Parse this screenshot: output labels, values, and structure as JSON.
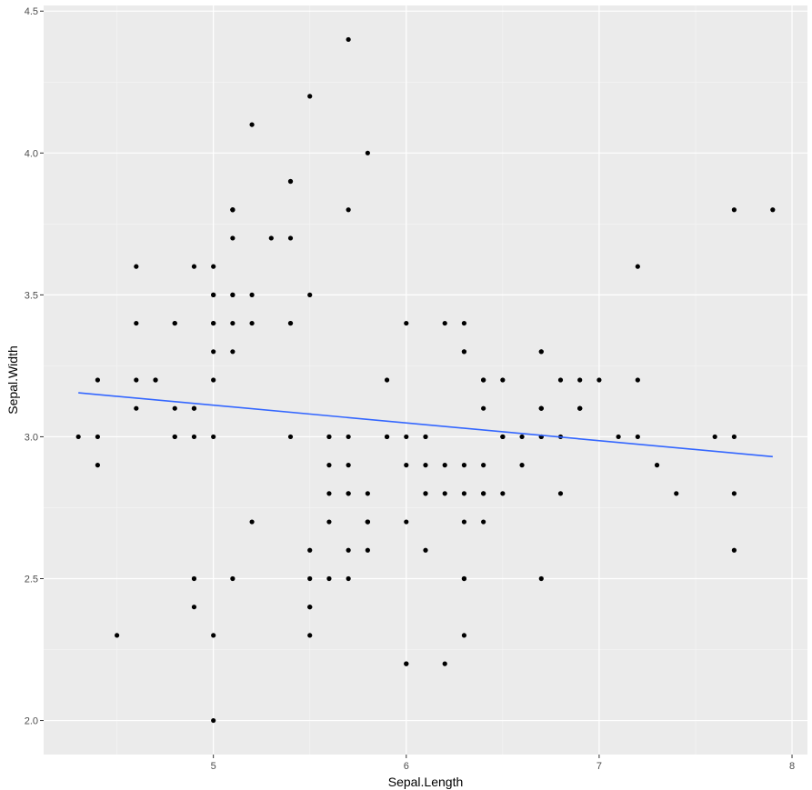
{
  "chart_data": {
    "type": "scatter",
    "title": "",
    "xlabel": "Sepal.Length",
    "ylabel": "Sepal.Width",
    "xlim": [
      4.12,
      8.08
    ],
    "ylim": [
      1.88,
      4.52
    ],
    "x_ticks": [
      5,
      6,
      7,
      8
    ],
    "y_ticks": [
      2.0,
      2.5,
      3.0,
      3.5,
      4.0,
      4.5
    ],
    "x_tick_labels": [
      "5",
      "6",
      "7",
      "8"
    ],
    "y_tick_labels": [
      "2.0",
      "2.5",
      "3.0",
      "3.5",
      "4.0",
      "4.5"
    ],
    "grid": true,
    "legend": "none",
    "colors": {
      "panel": "#ebebeb",
      "grid_major": "#ffffff",
      "grid_minor": "#f5f5f5",
      "points": "#000000",
      "trend": "#3366ff",
      "tick_label": "#4d4d4d",
      "tick": "#333333"
    },
    "series": [
      {
        "type": "scatter",
        "points": [
          [
            5.1,
            3.5
          ],
          [
            4.9,
            3.0
          ],
          [
            4.7,
            3.2
          ],
          [
            4.6,
            3.1
          ],
          [
            5.0,
            3.6
          ],
          [
            5.4,
            3.9
          ],
          [
            4.6,
            3.4
          ],
          [
            5.0,
            3.4
          ],
          [
            4.4,
            2.9
          ],
          [
            4.9,
            3.1
          ],
          [
            5.4,
            3.7
          ],
          [
            4.8,
            3.4
          ],
          [
            4.8,
            3.0
          ],
          [
            4.3,
            3.0
          ],
          [
            5.8,
            4.0
          ],
          [
            5.7,
            4.4
          ],
          [
            5.4,
            3.9
          ],
          [
            5.1,
            3.5
          ],
          [
            5.7,
            3.8
          ],
          [
            5.1,
            3.8
          ],
          [
            5.4,
            3.4
          ],
          [
            5.1,
            3.7
          ],
          [
            4.6,
            3.6
          ],
          [
            5.1,
            3.3
          ],
          [
            4.8,
            3.4
          ],
          [
            5.0,
            3.0
          ],
          [
            5.0,
            3.4
          ],
          [
            5.2,
            3.5
          ],
          [
            5.2,
            3.4
          ],
          [
            4.7,
            3.2
          ],
          [
            4.8,
            3.1
          ],
          [
            5.4,
            3.4
          ],
          [
            5.2,
            4.1
          ],
          [
            5.5,
            4.2
          ],
          [
            4.9,
            3.1
          ],
          [
            5.0,
            3.2
          ],
          [
            5.5,
            3.5
          ],
          [
            4.9,
            3.6
          ],
          [
            4.4,
            3.0
          ],
          [
            5.1,
            3.4
          ],
          [
            5.0,
            3.5
          ],
          [
            4.5,
            2.3
          ],
          [
            4.4,
            3.2
          ],
          [
            5.0,
            3.5
          ],
          [
            5.1,
            3.8
          ],
          [
            4.8,
            3.0
          ],
          [
            5.1,
            3.8
          ],
          [
            4.6,
            3.2
          ],
          [
            5.3,
            3.7
          ],
          [
            5.0,
            3.3
          ],
          [
            7.0,
            3.2
          ],
          [
            6.4,
            3.2
          ],
          [
            6.9,
            3.1
          ],
          [
            5.5,
            2.3
          ],
          [
            6.5,
            2.8
          ],
          [
            5.7,
            2.8
          ],
          [
            6.3,
            3.3
          ],
          [
            4.9,
            2.4
          ],
          [
            6.6,
            2.9
          ],
          [
            5.2,
            2.7
          ],
          [
            5.0,
            2.0
          ],
          [
            5.9,
            3.0
          ],
          [
            6.0,
            2.2
          ],
          [
            6.1,
            2.9
          ],
          [
            5.6,
            2.9
          ],
          [
            6.7,
            3.1
          ],
          [
            5.6,
            3.0
          ],
          [
            5.8,
            2.7
          ],
          [
            6.2,
            2.2
          ],
          [
            5.6,
            2.5
          ],
          [
            5.9,
            3.2
          ],
          [
            6.1,
            2.8
          ],
          [
            6.3,
            2.5
          ],
          [
            6.1,
            2.8
          ],
          [
            6.4,
            2.9
          ],
          [
            6.6,
            3.0
          ],
          [
            6.8,
            2.8
          ],
          [
            6.7,
            3.0
          ],
          [
            6.0,
            2.9
          ],
          [
            5.7,
            2.6
          ],
          [
            5.5,
            2.4
          ],
          [
            5.5,
            2.4
          ],
          [
            5.8,
            2.7
          ],
          [
            6.0,
            2.7
          ],
          [
            5.4,
            3.0
          ],
          [
            6.0,
            3.4
          ],
          [
            6.7,
            3.1
          ],
          [
            6.3,
            2.3
          ],
          [
            5.6,
            3.0
          ],
          [
            5.5,
            2.5
          ],
          [
            5.5,
            2.6
          ],
          [
            6.1,
            3.0
          ],
          [
            5.8,
            2.6
          ],
          [
            5.0,
            2.3
          ],
          [
            5.6,
            2.7
          ],
          [
            5.7,
            3.0
          ],
          [
            5.7,
            2.9
          ],
          [
            6.2,
            2.9
          ],
          [
            5.1,
            2.5
          ],
          [
            5.7,
            2.8
          ],
          [
            6.3,
            3.3
          ],
          [
            5.8,
            2.7
          ],
          [
            7.1,
            3.0
          ],
          [
            6.3,
            2.9
          ],
          [
            6.5,
            3.0
          ],
          [
            7.6,
            3.0
          ],
          [
            4.9,
            2.5
          ],
          [
            7.3,
            2.9
          ],
          [
            6.7,
            2.5
          ],
          [
            7.2,
            3.6
          ],
          [
            6.5,
            3.2
          ],
          [
            6.4,
            2.7
          ],
          [
            6.8,
            3.0
          ],
          [
            5.7,
            2.5
          ],
          [
            5.8,
            2.8
          ],
          [
            6.4,
            3.2
          ],
          [
            6.5,
            3.0
          ],
          [
            7.7,
            3.8
          ],
          [
            7.7,
            2.6
          ],
          [
            6.0,
            2.2
          ],
          [
            6.9,
            3.2
          ],
          [
            5.6,
            2.8
          ],
          [
            7.7,
            2.8
          ],
          [
            6.3,
            2.7
          ],
          [
            6.7,
            3.3
          ],
          [
            7.2,
            3.2
          ],
          [
            6.2,
            2.8
          ],
          [
            6.1,
            3.0
          ],
          [
            6.4,
            2.8
          ],
          [
            7.2,
            3.0
          ],
          [
            7.4,
            2.8
          ],
          [
            7.9,
            3.8
          ],
          [
            6.4,
            2.8
          ],
          [
            6.3,
            2.8
          ],
          [
            6.1,
            2.6
          ],
          [
            7.7,
            3.0
          ],
          [
            6.3,
            3.4
          ],
          [
            6.4,
            3.1
          ],
          [
            6.0,
            3.0
          ],
          [
            6.9,
            3.1
          ],
          [
            6.7,
            3.1
          ],
          [
            6.9,
            3.1
          ],
          [
            5.8,
            2.7
          ],
          [
            6.8,
            3.2
          ],
          [
            6.7,
            3.3
          ],
          [
            6.7,
            3.0
          ],
          [
            6.3,
            2.5
          ],
          [
            6.5,
            3.0
          ],
          [
            6.2,
            3.4
          ],
          [
            5.9,
            3.0
          ]
        ]
      },
      {
        "type": "line",
        "points": [
          [
            4.3,
            3.155
          ],
          [
            7.9,
            2.93
          ]
        ]
      }
    ]
  }
}
